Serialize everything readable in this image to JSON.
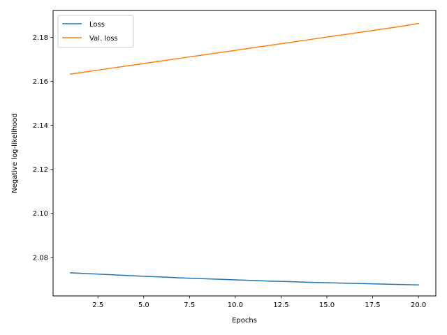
{
  "chart_data": {
    "type": "line",
    "title": "",
    "xlabel": "Epochs",
    "ylabel": "Negative log-likelihood",
    "xlim": [
      0.05,
      20.95
    ],
    "ylim": [
      2.0625,
      2.1922
    ],
    "xticks": [
      2.5,
      5.0,
      7.5,
      10.0,
      12.5,
      15.0,
      17.5,
      20.0
    ],
    "xtick_labels": [
      "2.5",
      "5.0",
      "7.5",
      "10.0",
      "12.5",
      "15.0",
      "17.5",
      "20.0"
    ],
    "yticks": [
      2.08,
      2.1,
      2.12,
      2.14,
      2.16,
      2.18
    ],
    "ytick_labels": [
      "2.08",
      "2.10",
      "2.12",
      "2.14",
      "2.16",
      "2.18"
    ],
    "grid": false,
    "legend_position": "upper left",
    "x": [
      1,
      2,
      3,
      4,
      5,
      6,
      7,
      8,
      9,
      10,
      11,
      12,
      13,
      14,
      15,
      16,
      17,
      18,
      19,
      20
    ],
    "series": [
      {
        "name": "Loss",
        "color": "#1f77b4",
        "values": [
          2.073,
          2.0726,
          2.0722,
          2.0718,
          2.0714,
          2.0711,
          2.0707,
          2.0704,
          2.0701,
          2.0698,
          2.0695,
          2.0692,
          2.069,
          2.0687,
          2.0685,
          2.0683,
          2.0681,
          2.0679,
          2.0677,
          2.0675
        ]
      },
      {
        "name": "Val. loss",
        "color": "#ff7f0e",
        "values": [
          2.1633,
          2.1645,
          2.1657,
          2.1669,
          2.1681,
          2.1693,
          2.1705,
          2.1717,
          2.1729,
          2.1741,
          2.1753,
          2.1765,
          2.1777,
          2.1789,
          2.1801,
          2.1813,
          2.1825,
          2.1837,
          2.1849,
          2.1863
        ]
      }
    ]
  }
}
